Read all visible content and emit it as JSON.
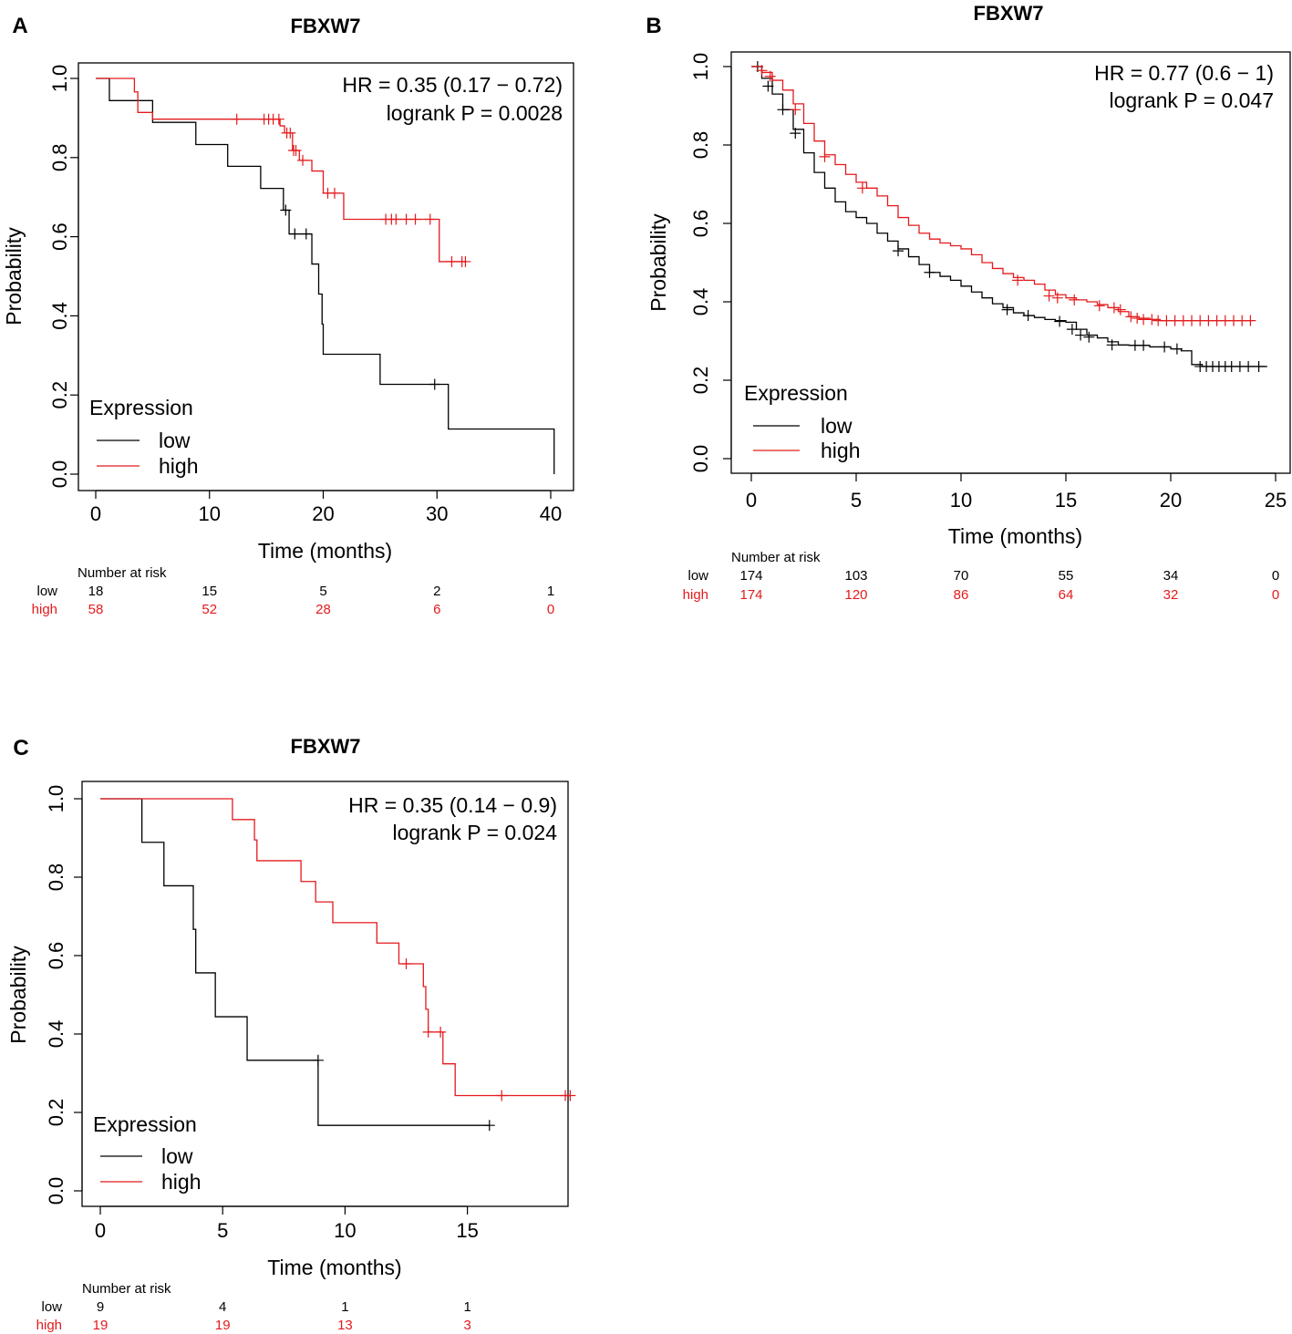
{
  "colors": {
    "low": "#000000",
    "high": "#e41a1c"
  },
  "chart_data": [
    {
      "panel": "A",
      "type": "line",
      "subtype": "kaplan-meier",
      "title": "FBXW7",
      "xlabel": "Time (months)",
      "ylabel": "Probability",
      "xlim": [
        0,
        40
      ],
      "ylim": [
        0,
        1
      ],
      "xticks": [
        "0",
        "10",
        "20",
        "30",
        "40"
      ],
      "yticks": [
        "0.0",
        "0.2",
        "0.4",
        "0.6",
        "0.8",
        "1.0"
      ],
      "hr_text": "HR = 0.35 (0.17 − 0.72)",
      "p_text": "logrank P = 0.0028",
      "legend": {
        "title": "Expression",
        "placement": "bottom-left",
        "entries": [
          "low",
          "high"
        ]
      },
      "series": [
        {
          "name": "low",
          "steps": [
            [
              0,
              1.0
            ],
            [
              1.2,
              0.944
            ],
            [
              5,
              0.889
            ],
            [
              8.8,
              0.833
            ],
            [
              11.6,
              0.778
            ],
            [
              14.5,
              0.722
            ],
            [
              16.5,
              0.667
            ],
            [
              17,
              0.607
            ],
            [
              19,
              0.531
            ],
            [
              19.6,
              0.455
            ],
            [
              19.9,
              0.379
            ],
            [
              20,
              0.303
            ],
            [
              25,
              0.227
            ],
            [
              31,
              0.114
            ],
            [
              40.3,
              0.0
            ]
          ],
          "end": 40.3,
          "censor": [
            [
              16.7,
              0.667
            ],
            [
              17.5,
              0.607
            ],
            [
              18.5,
              0.607
            ],
            [
              29.8,
              0.227
            ]
          ]
        },
        {
          "name": "high",
          "steps": [
            [
              0,
              1.0
            ],
            [
              3.4,
              0.966
            ],
            [
              3.7,
              0.914
            ],
            [
              5,
              0.897
            ],
            [
              16.2,
              0.88
            ],
            [
              16.6,
              0.862
            ],
            [
              17.3,
              0.818
            ],
            [
              17.9,
              0.793
            ],
            [
              19,
              0.766
            ],
            [
              20,
              0.71
            ],
            [
              21.8,
              0.644
            ],
            [
              30.2,
              0.537
            ]
          ],
          "end": 32.6,
          "censor": [
            [
              12.4,
              0.897
            ],
            [
              14.8,
              0.897
            ],
            [
              15.2,
              0.897
            ],
            [
              15.6,
              0.897
            ],
            [
              16.1,
              0.897
            ],
            [
              16.8,
              0.862
            ],
            [
              17.1,
              0.862
            ],
            [
              17.4,
              0.818
            ],
            [
              17.6,
              0.818
            ],
            [
              18.2,
              0.793
            ],
            [
              20.4,
              0.71
            ],
            [
              21,
              0.71
            ],
            [
              25.5,
              0.644
            ],
            [
              26,
              0.644
            ],
            [
              26.4,
              0.644
            ],
            [
              27.3,
              0.644
            ],
            [
              28.1,
              0.644
            ],
            [
              29.4,
              0.644
            ],
            [
              31.3,
              0.537
            ],
            [
              32.2,
              0.537
            ],
            [
              32.5,
              0.537
            ]
          ]
        }
      ],
      "risk_table": {
        "header": "Number at risk",
        "times": [
          0,
          10,
          20,
          30,
          40
        ],
        "rows": [
          {
            "label": "low",
            "values": [
              "18",
              "15",
              "5",
              "2",
              "1"
            ]
          },
          {
            "label": "high",
            "values": [
              "58",
              "52",
              "28",
              "6",
              "0"
            ]
          }
        ]
      }
    },
    {
      "panel": "B",
      "type": "line",
      "subtype": "kaplan-meier",
      "title": "FBXW7",
      "xlabel": "Time (months)",
      "ylabel": "Probability",
      "xlim": [
        0,
        25
      ],
      "ylim": [
        0,
        1
      ],
      "xticks": [
        "0",
        "5",
        "10",
        "15",
        "20",
        "25"
      ],
      "yticks": [
        "0.0",
        "0.2",
        "0.4",
        "0.6",
        "0.8",
        "1.0"
      ],
      "hr_text": "HR = 0.77 (0.6 − 1)",
      "p_text": "logrank P = 0.047",
      "legend": {
        "title": "Expression",
        "placement": "bottom-left",
        "entries": [
          "low",
          "high"
        ]
      },
      "series": [
        {
          "name": "low",
          "points": [
            [
              0,
              1.0
            ],
            [
              0.5,
              0.97
            ],
            [
              1,
              0.93
            ],
            [
              1.5,
              0.89
            ],
            [
              2,
              0.84
            ],
            [
              2.5,
              0.78
            ],
            [
              3,
              0.73
            ],
            [
              3.5,
              0.69
            ],
            [
              4,
              0.655
            ],
            [
              4.5,
              0.63
            ],
            [
              5,
              0.615
            ],
            [
              5.5,
              0.6
            ],
            [
              6,
              0.575
            ],
            [
              6.5,
              0.555
            ],
            [
              7,
              0.535
            ],
            [
              7.5,
              0.515
            ],
            [
              8,
              0.495
            ],
            [
              8.5,
              0.475
            ],
            [
              9,
              0.465
            ],
            [
              9.5,
              0.455
            ],
            [
              10,
              0.44
            ],
            [
              10.5,
              0.425
            ],
            [
              11,
              0.41
            ],
            [
              11.5,
              0.395
            ],
            [
              12,
              0.385
            ],
            [
              12.5,
              0.372
            ],
            [
              13,
              0.365
            ],
            [
              13.5,
              0.36
            ],
            [
              14,
              0.355
            ],
            [
              14.5,
              0.352
            ],
            [
              15,
              0.348
            ],
            [
              15.5,
              0.33
            ],
            [
              16,
              0.315
            ],
            [
              16.5,
              0.308
            ],
            [
              17,
              0.298
            ],
            [
              17.5,
              0.29
            ],
            [
              18,
              0.289
            ],
            [
              19,
              0.285
            ],
            [
              20,
              0.28
            ],
            [
              20.5,
              0.275
            ],
            [
              21,
              0.24
            ],
            [
              21.5,
              0.235
            ],
            [
              24.6,
              0.235
            ]
          ],
          "censor": [
            [
              0.3,
              1.0
            ],
            [
              0.8,
              0.95
            ],
            [
              1.5,
              0.89
            ],
            [
              2.1,
              0.83
            ],
            [
              7,
              0.53
            ],
            [
              8.5,
              0.475
            ],
            [
              12.2,
              0.38
            ],
            [
              13.2,
              0.365
            ],
            [
              14.7,
              0.35
            ],
            [
              15.3,
              0.33
            ],
            [
              15.7,
              0.315
            ],
            [
              16.1,
              0.31
            ],
            [
              17.2,
              0.29
            ],
            [
              18.3,
              0.289
            ],
            [
              18.7,
              0.289
            ],
            [
              19.7,
              0.285
            ],
            [
              20.3,
              0.28
            ],
            [
              21.4,
              0.235
            ],
            [
              21.7,
              0.235
            ],
            [
              22,
              0.235
            ],
            [
              22.3,
              0.235
            ],
            [
              22.6,
              0.235
            ],
            [
              22.9,
              0.235
            ],
            [
              23.3,
              0.235
            ],
            [
              23.7,
              0.235
            ],
            [
              24.2,
              0.235
            ]
          ]
        },
        {
          "name": "high",
          "points": [
            [
              0,
              1.0
            ],
            [
              0.5,
              0.985
            ],
            [
              1,
              0.965
            ],
            [
              1.5,
              0.94
            ],
            [
              2,
              0.905
            ],
            [
              2.5,
              0.855
            ],
            [
              3,
              0.81
            ],
            [
              3.5,
              0.775
            ],
            [
              4,
              0.75
            ],
            [
              4.5,
              0.725
            ],
            [
              5,
              0.705
            ],
            [
              5.5,
              0.69
            ],
            [
              6,
              0.67
            ],
            [
              6.5,
              0.645
            ],
            [
              7,
              0.615
            ],
            [
              7.5,
              0.595
            ],
            [
              8,
              0.575
            ],
            [
              8.5,
              0.56
            ],
            [
              9,
              0.55
            ],
            [
              9.5,
              0.543
            ],
            [
              10,
              0.535
            ],
            [
              10.5,
              0.52
            ],
            [
              11,
              0.5
            ],
            [
              11.5,
              0.485
            ],
            [
              12,
              0.472
            ],
            [
              12.5,
              0.462
            ],
            [
              13,
              0.455
            ],
            [
              13.5,
              0.445
            ],
            [
              14,
              0.43
            ],
            [
              14.5,
              0.418
            ],
            [
              15,
              0.41
            ],
            [
              15.5,
              0.405
            ],
            [
              16,
              0.4
            ],
            [
              16.5,
              0.393
            ],
            [
              17,
              0.385
            ],
            [
              17.5,
              0.375
            ],
            [
              18,
              0.362
            ],
            [
              18.5,
              0.358
            ],
            [
              19,
              0.355
            ],
            [
              19.5,
              0.352
            ],
            [
              23.9,
              0.352
            ]
          ],
          "censor": [
            [
              0.5,
              0.99
            ],
            [
              0.9,
              0.975
            ],
            [
              2.1,
              0.89
            ],
            [
              3.5,
              0.77
            ],
            [
              5.3,
              0.69
            ],
            [
              12.7,
              0.455
            ],
            [
              14.2,
              0.415
            ],
            [
              14.6,
              0.41
            ],
            [
              15.4,
              0.405
            ],
            [
              16.6,
              0.39
            ],
            [
              17.3,
              0.385
            ],
            [
              17.6,
              0.38
            ],
            [
              18.1,
              0.362
            ],
            [
              18.4,
              0.358
            ],
            [
              18.7,
              0.355
            ],
            [
              19.1,
              0.355
            ],
            [
              19.4,
              0.352
            ],
            [
              19.8,
              0.352
            ],
            [
              20.2,
              0.352
            ],
            [
              20.6,
              0.352
            ],
            [
              21,
              0.352
            ],
            [
              21.4,
              0.352
            ],
            [
              21.8,
              0.352
            ],
            [
              22.2,
              0.352
            ],
            [
              22.6,
              0.352
            ],
            [
              23,
              0.352
            ],
            [
              23.4,
              0.352
            ],
            [
              23.8,
              0.352
            ]
          ]
        }
      ],
      "risk_table": {
        "header": "Number at risk",
        "times": [
          0,
          5,
          10,
          15,
          20,
          25
        ],
        "rows": [
          {
            "label": "low",
            "values": [
              "174",
              "103",
              "70",
              "55",
              "34",
              "0"
            ]
          },
          {
            "label": "high",
            "values": [
              "174",
              "120",
              "86",
              "64",
              "32",
              "0"
            ]
          }
        ]
      }
    },
    {
      "panel": "C",
      "type": "line",
      "subtype": "kaplan-meier",
      "title": "FBXW7",
      "xlabel": "Time (months)",
      "ylabel": "Probability",
      "xlim": [
        0,
        19
      ],
      "ylim": [
        0,
        1
      ],
      "xticks": [
        "0",
        "5",
        "10",
        "15"
      ],
      "yticks": [
        "0.0",
        "0.2",
        "0.4",
        "0.6",
        "0.8",
        "1.0"
      ],
      "hr_text": "HR = 0.35 (0.14 − 0.9)",
      "p_text": "logrank P = 0.024",
      "legend": {
        "title": "Expression",
        "placement": "bottom-left",
        "entries": [
          "low",
          "high"
        ]
      },
      "series": [
        {
          "name": "low",
          "steps": [
            [
              0,
              1.0
            ],
            [
              1.7,
              0.889
            ],
            [
              2.6,
              0.778
            ],
            [
              3.8,
              0.667
            ],
            [
              3.9,
              0.556
            ],
            [
              4.7,
              0.444
            ],
            [
              6,
              0.333
            ],
            [
              8.9,
              0.167
            ]
          ],
          "end": 15.9,
          "censor": [
            [
              8.9,
              0.333
            ],
            [
              15.9,
              0.167
            ]
          ]
        },
        {
          "name": "high",
          "steps": [
            [
              0,
              1.0
            ],
            [
              5.4,
              0.947
            ],
            [
              6.3,
              0.895
            ],
            [
              6.4,
              0.842
            ],
            [
              8.2,
              0.789
            ],
            [
              8.8,
              0.737
            ],
            [
              9.5,
              0.684
            ],
            [
              11.3,
              0.632
            ],
            [
              12.2,
              0.579
            ],
            [
              13.2,
              0.521
            ],
            [
              13.3,
              0.463
            ],
            [
              13.4,
              0.405
            ],
            [
              14,
              0.324
            ],
            [
              14.5,
              0.243
            ]
          ],
          "end": 19.2,
          "censor": [
            [
              12.5,
              0.579
            ],
            [
              13.4,
              0.405
            ],
            [
              13.9,
              0.405
            ],
            [
              16.4,
              0.243
            ],
            [
              19,
              0.243
            ],
            [
              19.2,
              0.243
            ]
          ]
        }
      ],
      "risk_table": {
        "header": "Number at risk",
        "times": [
          0,
          5,
          10,
          15
        ],
        "rows": [
          {
            "label": "low",
            "values": [
              "9",
              "4",
              "1",
              "1"
            ]
          },
          {
            "label": "high",
            "values": [
              "19",
              "19",
              "13",
              "3"
            ]
          }
        ]
      }
    }
  ]
}
